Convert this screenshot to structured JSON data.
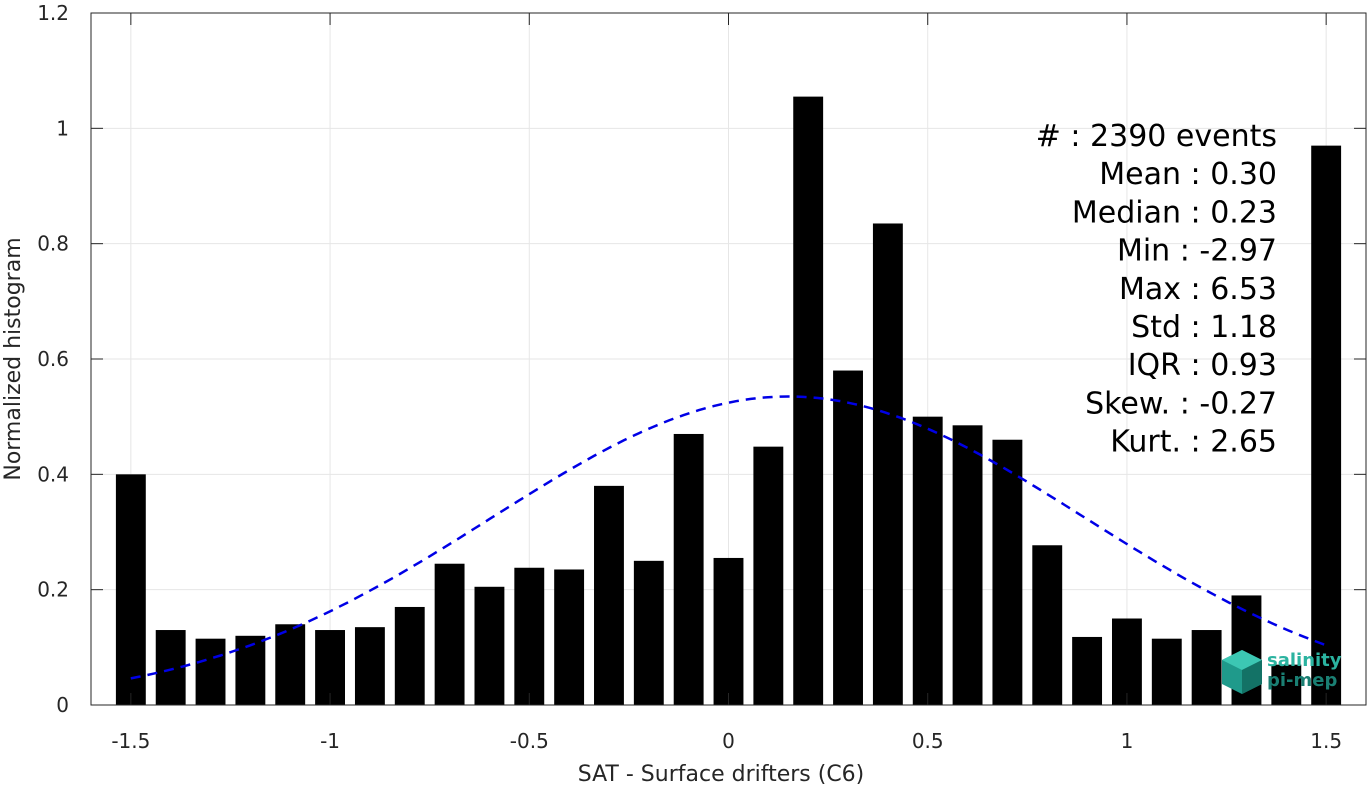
{
  "chart_data": {
    "type": "bar",
    "xlabel": "SAT - Surface drifters (C6)",
    "ylabel": "Normalized histogram",
    "xlim": [
      -1.6,
      1.6
    ],
    "ylim": [
      0,
      1.2
    ],
    "grid": true,
    "x_ticks": [
      -1.5,
      -1,
      -0.5,
      0,
      0.5,
      1,
      1.5
    ],
    "x_tick_labels": [
      "-1.5",
      "-1",
      "-0.5",
      "0",
      "0.5",
      "1",
      "1.5"
    ],
    "y_ticks": [
      0,
      0.2,
      0.4,
      0.6,
      0.8,
      1,
      1.2
    ],
    "y_tick_labels": [
      "0",
      "0.2",
      "0.4",
      "0.6",
      "0.8",
      "1",
      "1.2"
    ],
    "bar_width": 0.075,
    "bar_color": "#000000",
    "bars": {
      "x": [
        -1.5,
        -1.4,
        -1.3,
        -1.2,
        -1.1,
        -1.0,
        -0.9,
        -0.8,
        -0.7,
        -0.6,
        -0.5,
        -0.4,
        -0.3,
        -0.2,
        -0.1,
        0.0,
        0.1,
        0.2,
        0.3,
        0.4,
        0.5,
        0.6,
        0.7,
        0.8,
        0.9,
        1.0,
        1.1,
        1.2,
        1.3,
        1.4,
        1.5
      ],
      "values": [
        0.4,
        0.13,
        0.115,
        0.12,
        0.14,
        0.13,
        0.135,
        0.17,
        0.245,
        0.205,
        0.238,
        0.235,
        0.38,
        0.25,
        0.47,
        0.255,
        0.448,
        1.055,
        0.58,
        0.835,
        0.5,
        0.485,
        0.46,
        0.277,
        0.118,
        0.15,
        0.115,
        0.13,
        0.19,
        0.07,
        0.97
      ]
    },
    "fit_curve": {
      "style": "dashed",
      "color": "#0000e6",
      "mean": 0.15,
      "std": 0.745,
      "peak": 0.535,
      "x_range": [
        -1.5,
        1.5
      ]
    },
    "annotations": [
      "#  : 2390 events",
      "Mean : 0.30",
      "Median : 0.23",
      "Min : -2.97",
      "Max : 6.53",
      "Std : 1.18",
      "IQR : 0.93",
      "Skew. : -0.27",
      "Kurt. : 2.65"
    ]
  },
  "logo": {
    "line1": "salinity",
    "line2": "pi-mep",
    "color_light": "#2bb3a0",
    "color_dark": "#1a7f73"
  }
}
